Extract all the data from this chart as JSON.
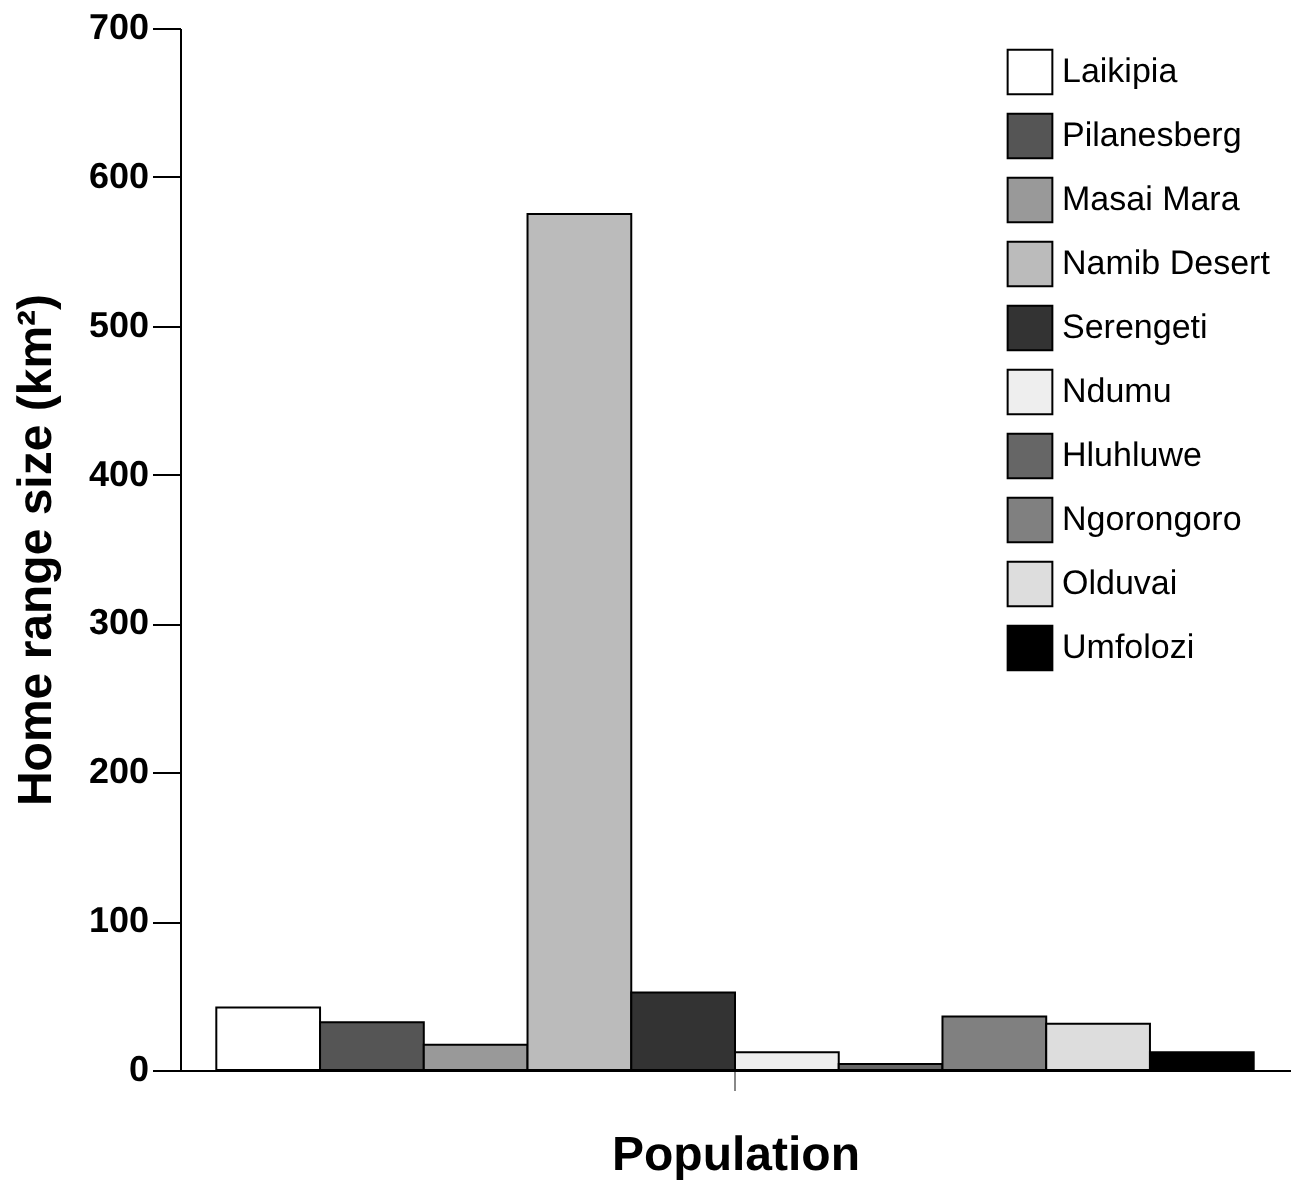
{
  "chart_data": {
    "type": "bar",
    "xlabel": "Population",
    "ylabel": "Home range size (km²)",
    "categories": [
      null
    ],
    "series": [
      {
        "name": "Laikipia",
        "color": "#ffffff",
        "values": [
          42
        ]
      },
      {
        "name": "Pilanesberg",
        "color": "#555555",
        "values": [
          32
        ]
      },
      {
        "name": "Masai Mara",
        "color": "#999999",
        "values": [
          17
        ]
      },
      {
        "name": "Namib Desert",
        "color": "#bbbbbb",
        "values": [
          575
        ]
      },
      {
        "name": "Serengeti",
        "color": "#333333",
        "values": [
          52
        ]
      },
      {
        "name": "Ndumu",
        "color": "#eeeeee",
        "values": [
          12
        ]
      },
      {
        "name": "Hluhluwe",
        "color": "#666666",
        "values": [
          4
        ]
      },
      {
        "name": "Ngorongoro",
        "color": "#808080",
        "values": [
          36
        ]
      },
      {
        "name": "Olduvai",
        "color": "#dddddd",
        "values": [
          31
        ]
      },
      {
        "name": "Umfolozi",
        "color": "#000000",
        "values": [
          12
        ]
      }
    ],
    "ylim": [
      0,
      700
    ],
    "yticks": [
      0,
      100,
      200,
      300,
      400,
      500,
      600,
      700
    ],
    "grid": false,
    "legend": "top right",
    "tick_labels": "y"
  }
}
